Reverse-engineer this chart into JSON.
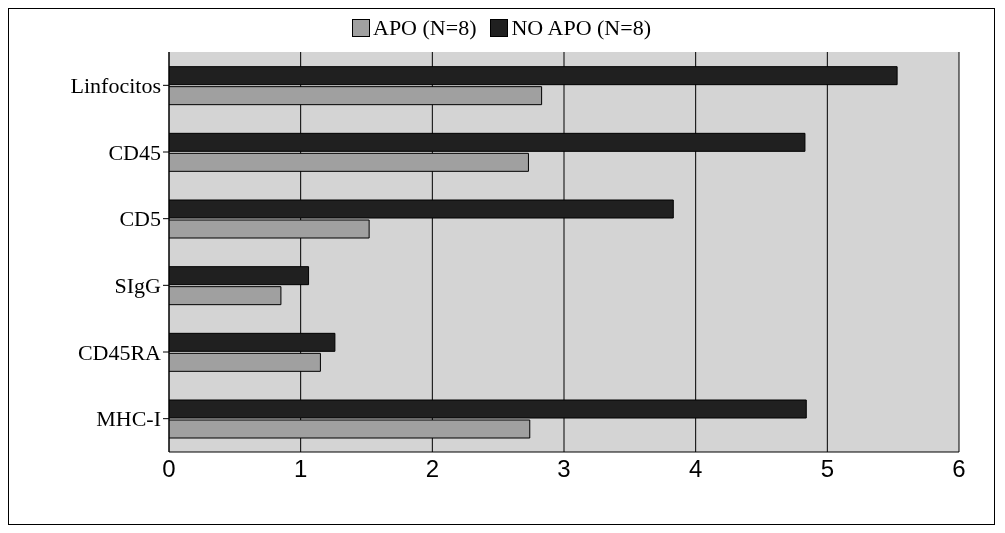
{
  "chart_data": {
    "type": "bar",
    "orientation": "horizontal",
    "categories": [
      "Linfocitos",
      "CD45",
      "CD5",
      "SIgG",
      "CD45RA",
      "MHC-I"
    ],
    "series": [
      {
        "name": "APO (N=8)",
        "color": "#a0a0a0",
        "values": [
          2.83,
          2.73,
          1.52,
          0.85,
          1.15,
          2.74
        ]
      },
      {
        "name": "NO APO (N=8)",
        "color": "#202020",
        "values": [
          5.53,
          4.83,
          3.83,
          1.06,
          1.26,
          4.84
        ]
      }
    ],
    "xlim": [
      0,
      6
    ],
    "xticks": [
      0,
      1,
      2,
      3,
      4,
      5,
      6
    ],
    "grid": "x",
    "legend": "top"
  }
}
